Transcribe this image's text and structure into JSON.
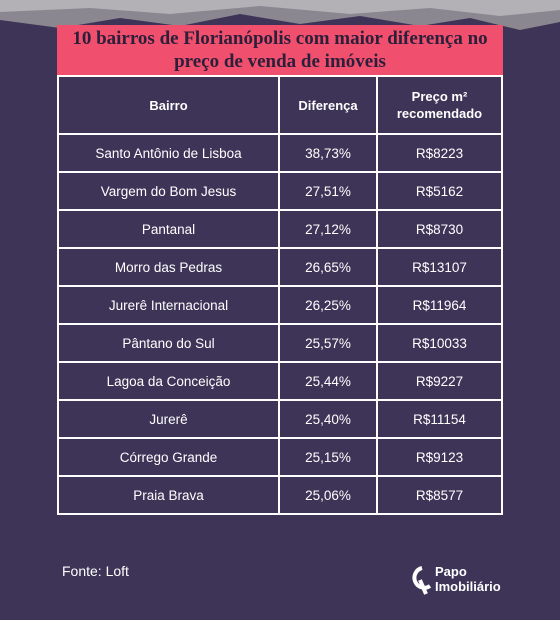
{
  "header": {
    "title": "10 bairros de Florianópolis com maior diferença no preço de venda de imóveis"
  },
  "table": {
    "columns": [
      "Bairro",
      "Diferença",
      "Preço m² recomendado"
    ],
    "rows": [
      [
        "Santo Antônio de Lisboa",
        "38,73%",
        "R$8223"
      ],
      [
        "Vargem do Bom Jesus",
        "27,51%",
        "R$5162"
      ],
      [
        "Pantanal",
        "27,12%",
        "R$8730"
      ],
      [
        "Morro das Pedras",
        "26,65%",
        "R$13107"
      ],
      [
        "Jurerê Internacional",
        "26,25%",
        "R$11964"
      ],
      [
        "Pântano do Sul",
        "25,57%",
        "R$10033"
      ],
      [
        "Lagoa da Conceição",
        "25,44%",
        "R$9227"
      ],
      [
        "Jurerê",
        "25,40%",
        "R$11154"
      ],
      [
        "Córrego Grande",
        "25,15%",
        "R$9123"
      ],
      [
        "Praia Brava",
        "25,06%",
        "R$8577"
      ]
    ]
  },
  "footer": {
    "source": "Fonte: Loft",
    "logo_line1": "Papo",
    "logo_line2": "Imobiliário"
  }
}
